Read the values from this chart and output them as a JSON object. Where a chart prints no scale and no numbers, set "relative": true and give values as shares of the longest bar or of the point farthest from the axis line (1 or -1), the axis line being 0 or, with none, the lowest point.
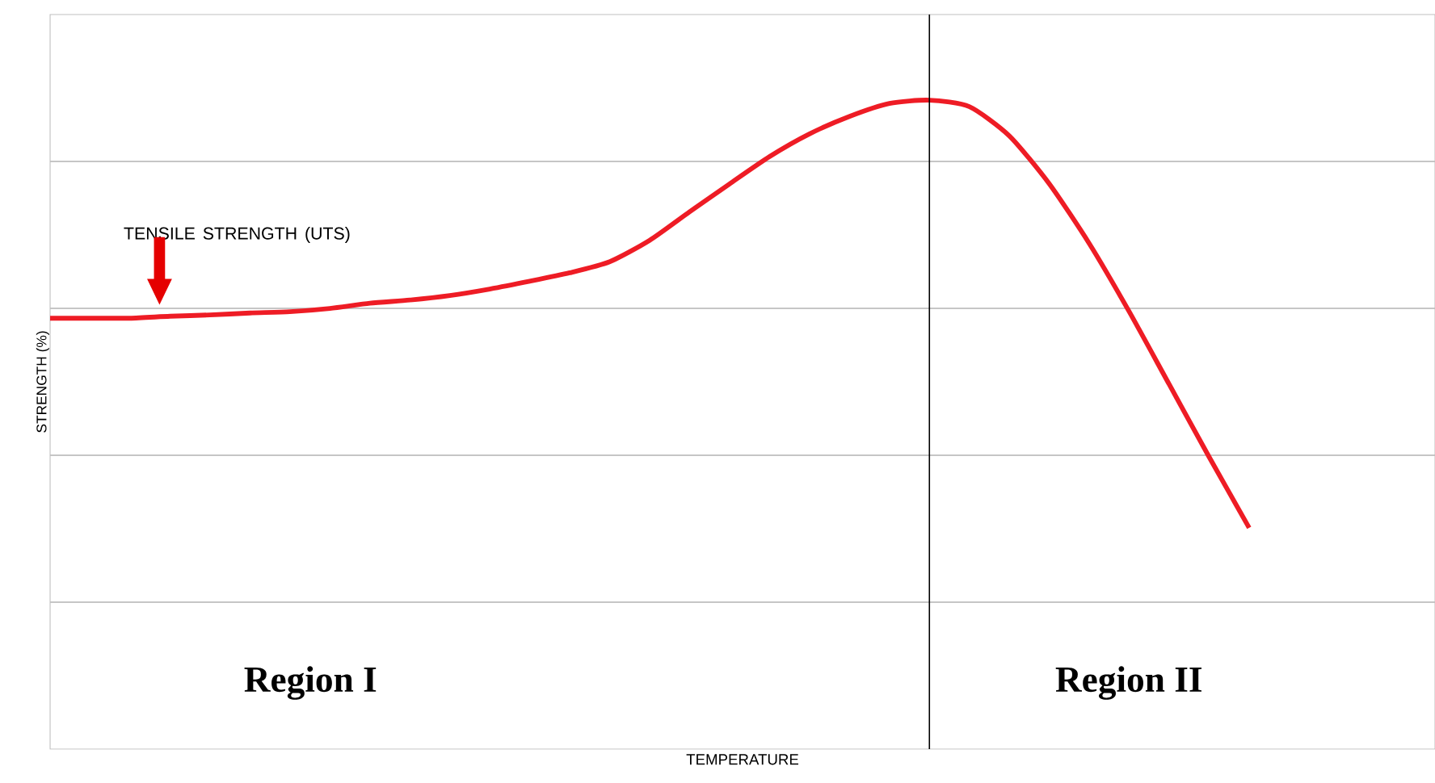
{
  "chart_data": {
    "type": "line",
    "relative": true,
    "xlabel": "TEMPERATURE",
    "ylabel": "STRENGTH (%)",
    "categories": [
      null,
      null,
      null,
      null,
      null,
      null,
      null,
      null,
      null,
      null,
      null,
      null,
      null,
      null,
      null,
      null,
      null,
      null,
      null,
      null,
      null,
      null,
      null,
      null,
      null,
      null,
      null,
      null,
      null,
      null,
      null
    ],
    "series": [
      {
        "color": "#ee1c25",
        "values": [
          0.664,
          0.664,
          0.664,
          0.667,
          0.669,
          0.672,
          0.674,
          0.679,
          0.687,
          0.692,
          0.699,
          0.709,
          0.721,
          0.734,
          0.751,
          0.784,
          0.828,
          0.871,
          0.913,
          0.948,
          0.975,
          0.995,
          1.0,
          0.99,
          0.945,
          0.871,
          0.779,
          0.674,
          0.562,
          0.45,
          0.341
        ]
      }
    ],
    "annotations": [
      "TENSILE STRENGTH (UTS)",
      "Region I",
      "Region II"
    ],
    "grid": "y",
    "marker": "none",
    "line_style": "solid"
  }
}
